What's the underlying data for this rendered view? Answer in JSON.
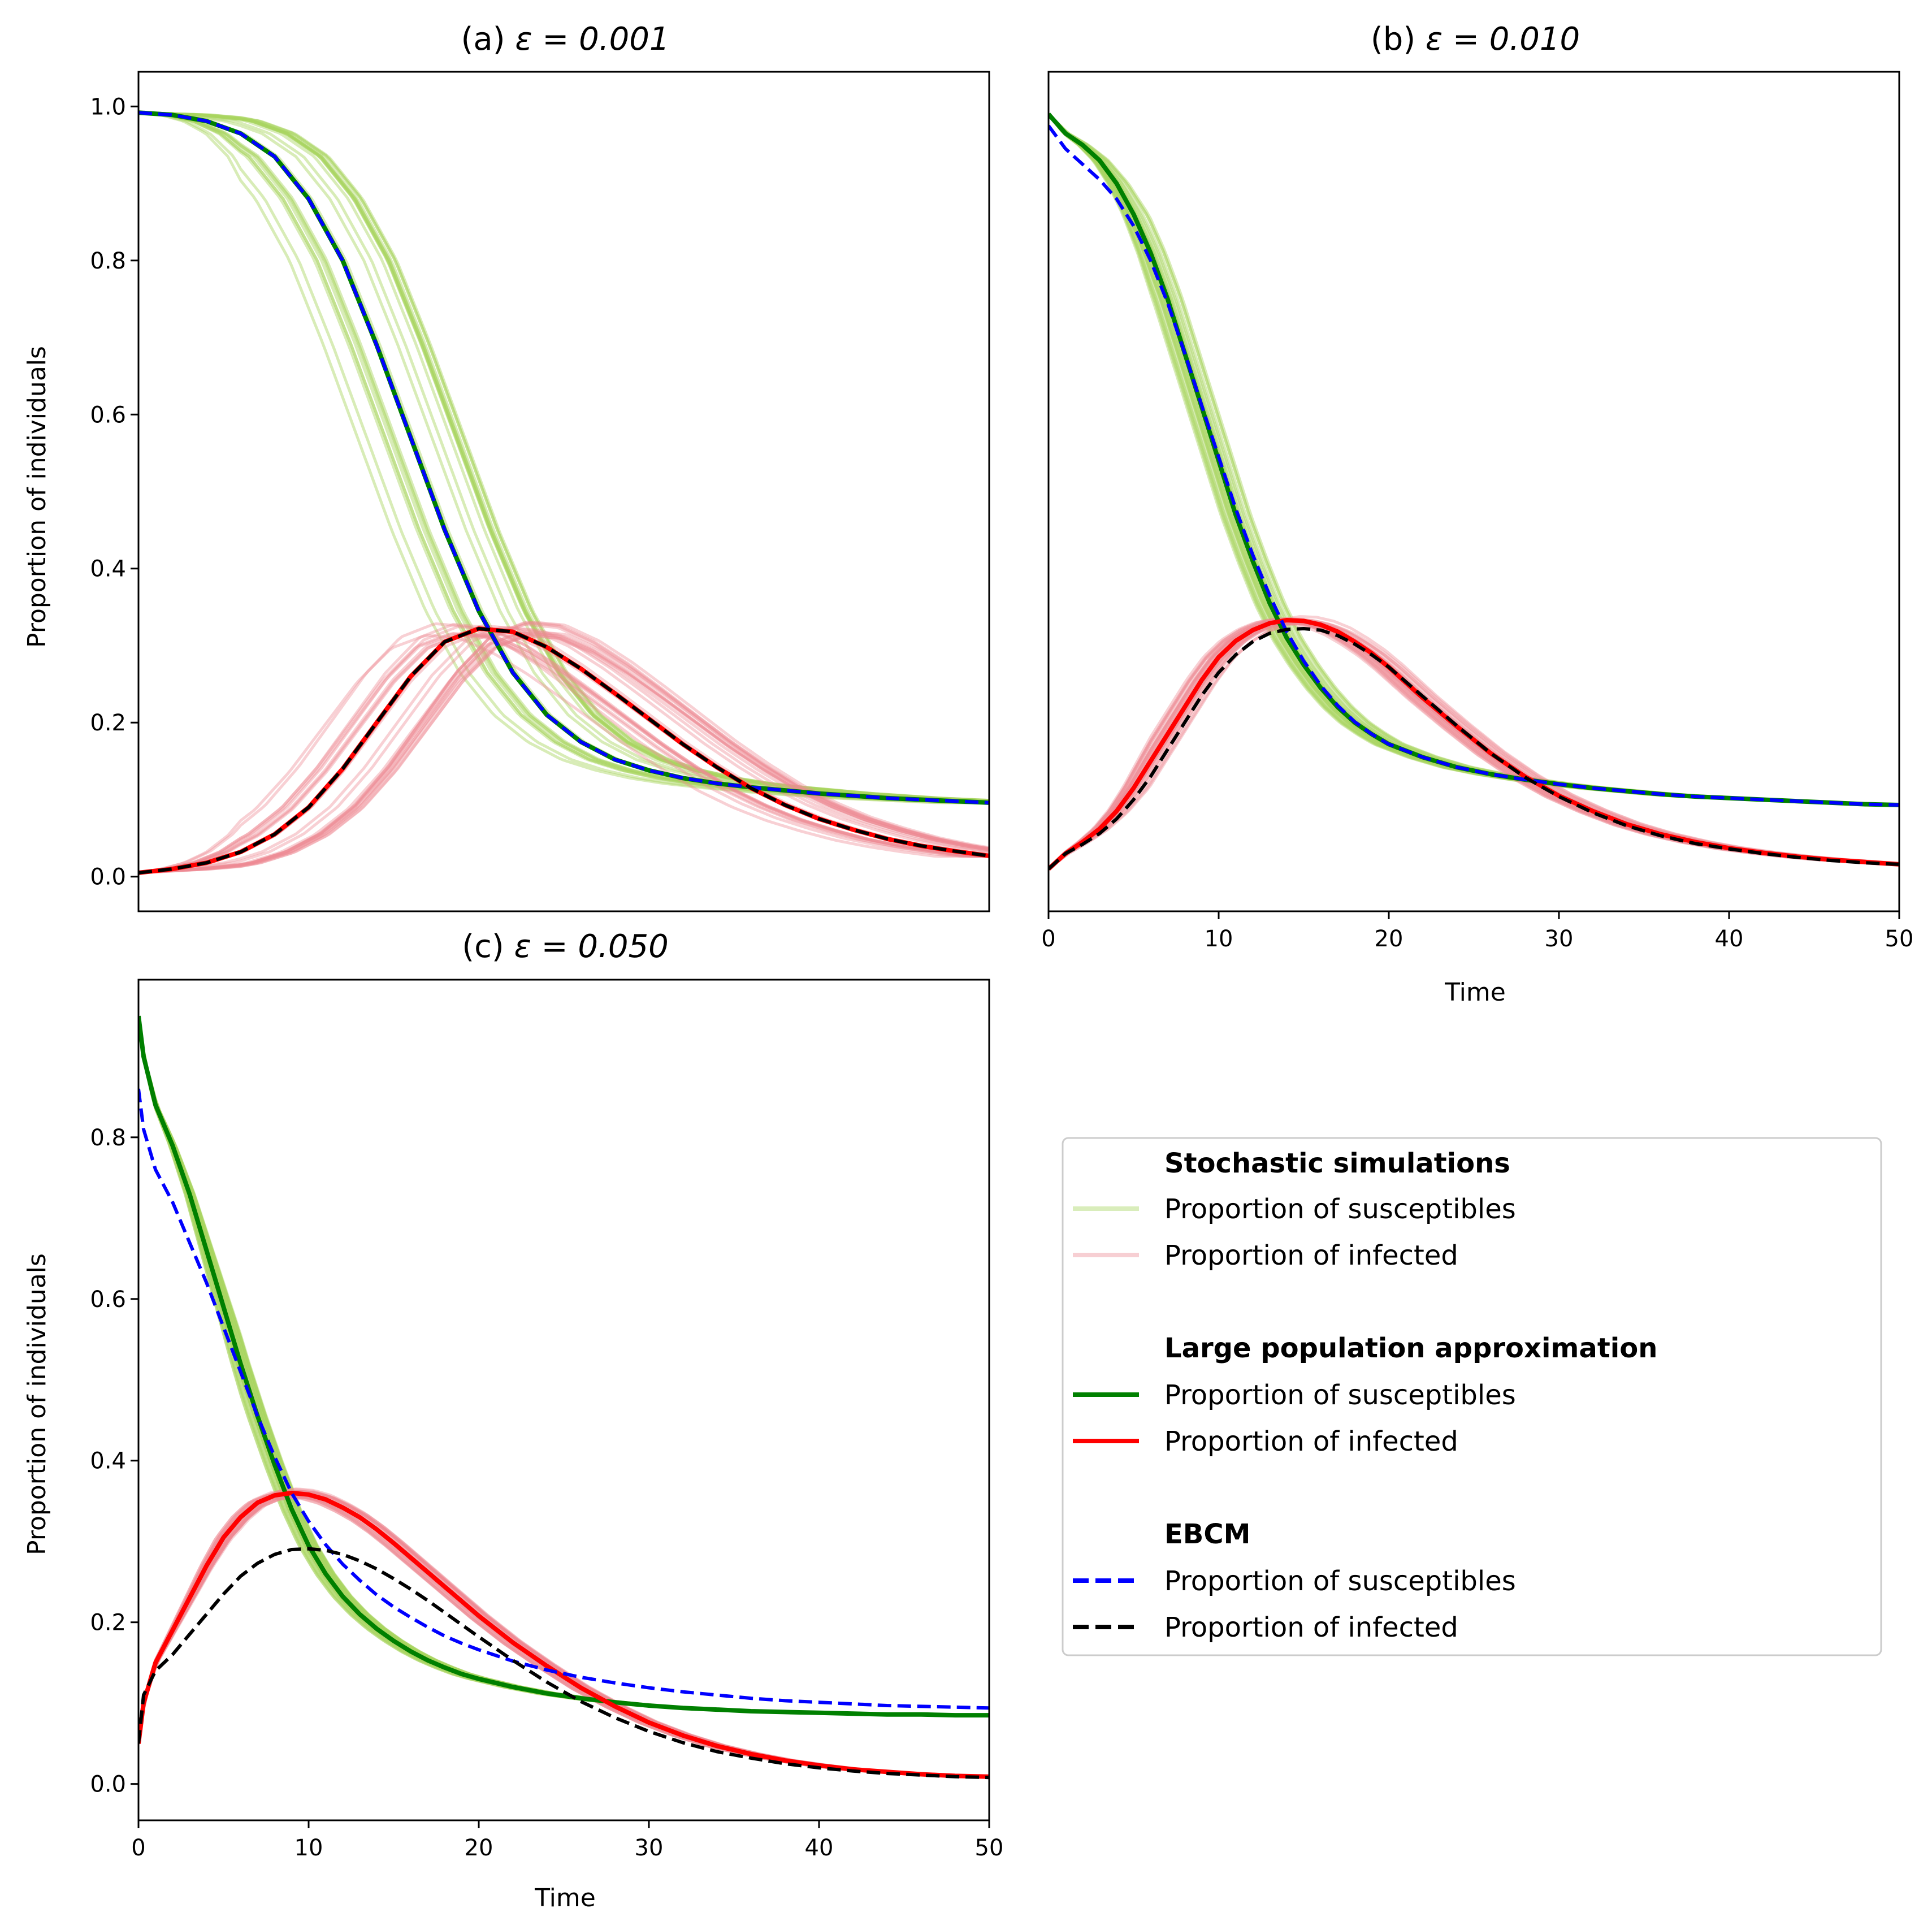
{
  "chart_data": [
    {
      "type": "line",
      "panel": "a",
      "title_prefix": "(a) ",
      "title_math": "ε = 0.001",
      "xlabel": "",
      "ylabel": "Proportion of individuals",
      "xlim": [
        0,
        50
      ],
      "ylim": [
        -0.045,
        1.045
      ],
      "show_xticks": false,
      "show_yticks": true,
      "yticks": [
        "0.0",
        "0.2",
        "0.4",
        "0.6",
        "0.8",
        "1.0"
      ],
      "ytick_values": [
        0,
        0.2,
        0.4,
        0.6,
        0.8,
        1.0
      ],
      "series": [
        {
          "role": "lpa_susceptibles",
          "color": "#008000",
          "style": "solid",
          "x": [
            0,
            2,
            4,
            6,
            8,
            10,
            12,
            14,
            16,
            18,
            20,
            22,
            24,
            26,
            28,
            30,
            32,
            34,
            36,
            38,
            40,
            42,
            44,
            46,
            48,
            50
          ],
          "y": [
            0.992,
            0.989,
            0.981,
            0.965,
            0.935,
            0.88,
            0.8,
            0.69,
            0.57,
            0.45,
            0.345,
            0.265,
            0.21,
            0.175,
            0.152,
            0.138,
            0.128,
            0.121,
            0.116,
            0.112,
            0.108,
            0.105,
            0.102,
            0.1,
            0.098,
            0.096
          ]
        },
        {
          "role": "lpa_infected",
          "color": "#ff0000",
          "style": "solid",
          "x": [
            0,
            2,
            4,
            6,
            8,
            10,
            12,
            14,
            16,
            18,
            20,
            22,
            24,
            26,
            28,
            30,
            32,
            34,
            36,
            38,
            40,
            42,
            44,
            46,
            48,
            50
          ],
          "y": [
            0.005,
            0.01,
            0.018,
            0.032,
            0.055,
            0.09,
            0.14,
            0.2,
            0.26,
            0.305,
            0.322,
            0.318,
            0.298,
            0.27,
            0.238,
            0.205,
            0.172,
            0.142,
            0.115,
            0.093,
            0.075,
            0.061,
            0.049,
            0.04,
            0.033,
            0.027
          ]
        },
        {
          "role": "ebcm_susceptibles",
          "color": "#0000ff",
          "style": "dashed",
          "x": [
            0,
            2,
            4,
            6,
            8,
            10,
            12,
            14,
            16,
            18,
            20,
            22,
            24,
            26,
            28,
            30,
            32,
            34,
            36,
            38,
            40,
            42,
            44,
            46,
            48,
            50
          ],
          "y": [
            0.992,
            0.989,
            0.981,
            0.965,
            0.935,
            0.88,
            0.8,
            0.69,
            0.57,
            0.45,
            0.345,
            0.265,
            0.21,
            0.175,
            0.152,
            0.138,
            0.128,
            0.121,
            0.116,
            0.112,
            0.108,
            0.105,
            0.102,
            0.1,
            0.098,
            0.096
          ]
        },
        {
          "role": "ebcm_infected",
          "color": "#000000",
          "style": "dashed",
          "x": [
            0,
            2,
            4,
            6,
            8,
            10,
            12,
            14,
            16,
            18,
            20,
            22,
            24,
            26,
            28,
            30,
            32,
            34,
            36,
            38,
            40,
            42,
            44,
            46,
            48,
            50
          ],
          "y": [
            0.005,
            0.01,
            0.018,
            0.032,
            0.055,
            0.09,
            0.14,
            0.2,
            0.26,
            0.305,
            0.322,
            0.318,
            0.298,
            0.27,
            0.238,
            0.205,
            0.172,
            0.142,
            0.115,
            0.093,
            0.075,
            0.061,
            0.049,
            0.04,
            0.033,
            0.027
          ]
        }
      ]
    },
    {
      "type": "line",
      "panel": "b",
      "title_prefix": "(b) ",
      "title_math": "ε = 0.010",
      "xlabel": "Time",
      "ylabel": "",
      "xlim": [
        0,
        50
      ],
      "ylim": [
        -0.045,
        1.045
      ],
      "show_xticks": true,
      "show_yticks": false,
      "xticks": [
        "0",
        "10",
        "20",
        "30",
        "40",
        "50"
      ],
      "xtick_values": [
        0,
        10,
        20,
        30,
        40,
        50
      ],
      "series": [
        {
          "role": "lpa_susceptibles",
          "color": "#008000",
          "style": "solid",
          "x": [
            0,
            1,
            2,
            3,
            4,
            5,
            6,
            7,
            8,
            9,
            10,
            11,
            12,
            13,
            14,
            15,
            16,
            17,
            18,
            19,
            20,
            22,
            24,
            26,
            28,
            30,
            32,
            34,
            36,
            38,
            40,
            42,
            44,
            46,
            48,
            50
          ],
          "y": [
            0.99,
            0.965,
            0.95,
            0.93,
            0.9,
            0.86,
            0.81,
            0.75,
            0.68,
            0.61,
            0.54,
            0.47,
            0.41,
            0.355,
            0.31,
            0.275,
            0.245,
            0.22,
            0.2,
            0.185,
            0.172,
            0.155,
            0.142,
            0.133,
            0.126,
            0.12,
            0.115,
            0.111,
            0.107,
            0.104,
            0.102,
            0.1,
            0.098,
            0.096,
            0.094,
            0.093
          ]
        },
        {
          "role": "lpa_infected",
          "color": "#ff0000",
          "style": "solid",
          "x": [
            0,
            1,
            2,
            3,
            4,
            5,
            6,
            7,
            8,
            9,
            10,
            11,
            12,
            13,
            14,
            15,
            16,
            17,
            18,
            19,
            20,
            22,
            24,
            26,
            28,
            30,
            32,
            34,
            36,
            38,
            40,
            42,
            44,
            46,
            48,
            50
          ],
          "y": [
            0.01,
            0.03,
            0.045,
            0.062,
            0.085,
            0.115,
            0.15,
            0.185,
            0.22,
            0.255,
            0.285,
            0.306,
            0.32,
            0.329,
            0.333,
            0.332,
            0.327,
            0.318,
            0.305,
            0.29,
            0.272,
            0.232,
            0.195,
            0.16,
            0.13,
            0.105,
            0.085,
            0.068,
            0.055,
            0.045,
            0.037,
            0.031,
            0.026,
            0.022,
            0.019,
            0.016
          ]
        },
        {
          "role": "ebcm_susceptibles",
          "color": "#0000ff",
          "style": "dashed",
          "x": [
            0,
            1,
            2,
            3,
            4,
            5,
            6,
            7,
            8,
            9,
            10,
            11,
            12,
            13,
            14,
            15,
            16,
            17,
            18,
            19,
            20,
            22,
            24,
            26,
            28,
            30,
            32,
            34,
            36,
            38,
            40,
            42,
            44,
            46,
            48,
            50
          ],
          "y": [
            0.975,
            0.945,
            0.925,
            0.905,
            0.88,
            0.845,
            0.8,
            0.745,
            0.68,
            0.612,
            0.545,
            0.478,
            0.418,
            0.365,
            0.318,
            0.28,
            0.248,
            0.222,
            0.201,
            0.185,
            0.172,
            0.155,
            0.142,
            0.133,
            0.126,
            0.12,
            0.115,
            0.111,
            0.107,
            0.104,
            0.102,
            0.1,
            0.098,
            0.096,
            0.094,
            0.093
          ]
        },
        {
          "role": "ebcm_infected",
          "color": "#000000",
          "style": "dashed",
          "x": [
            0,
            1,
            2,
            3,
            4,
            5,
            6,
            7,
            8,
            9,
            10,
            11,
            12,
            13,
            14,
            15,
            16,
            17,
            18,
            19,
            20,
            22,
            24,
            26,
            28,
            30,
            32,
            34,
            36,
            38,
            40,
            42,
            44,
            46,
            48,
            50
          ],
          "y": [
            0.01,
            0.03,
            0.042,
            0.056,
            0.075,
            0.1,
            0.13,
            0.165,
            0.2,
            0.235,
            0.265,
            0.288,
            0.305,
            0.316,
            0.321,
            0.322,
            0.32,
            0.313,
            0.302,
            0.288,
            0.272,
            0.234,
            0.196,
            0.16,
            0.129,
            0.104,
            0.083,
            0.066,
            0.053,
            0.043,
            0.036,
            0.03,
            0.025,
            0.021,
            0.018,
            0.016
          ]
        }
      ]
    },
    {
      "type": "line",
      "panel": "c",
      "title_prefix": "(c) ",
      "title_math": "ε = 0.050",
      "xlabel": "Time",
      "ylabel": "Proportion of individuals",
      "xlim": [
        0,
        50
      ],
      "ylim": [
        -0.045,
        0.995
      ],
      "show_xticks": true,
      "show_yticks": true,
      "xticks": [
        "0",
        "10",
        "20",
        "30",
        "40",
        "50"
      ],
      "xtick_values": [
        0,
        10,
        20,
        30,
        40,
        50
      ],
      "yticks": [
        "0.0",
        "0.2",
        "0.4",
        "0.6",
        "0.8"
      ],
      "ytick_values": [
        0,
        0.2,
        0.4,
        0.6,
        0.8
      ],
      "series": [
        {
          "role": "lpa_susceptibles",
          "color": "#008000",
          "style": "solid",
          "x": [
            0,
            0.3,
            1,
            2,
            3,
            4,
            5,
            6,
            7,
            8,
            9,
            10,
            11,
            12,
            13,
            14,
            15,
            16,
            17,
            18,
            19,
            20,
            22,
            24,
            26,
            28,
            30,
            32,
            34,
            36,
            38,
            40,
            42,
            44,
            46,
            48,
            50
          ],
          "y": [
            0.95,
            0.9,
            0.84,
            0.79,
            0.73,
            0.66,
            0.59,
            0.52,
            0.455,
            0.395,
            0.34,
            0.295,
            0.26,
            0.232,
            0.21,
            0.192,
            0.177,
            0.164,
            0.153,
            0.144,
            0.136,
            0.13,
            0.12,
            0.112,
            0.106,
            0.101,
            0.097,
            0.094,
            0.092,
            0.09,
            0.089,
            0.088,
            0.087,
            0.086,
            0.086,
            0.085,
            0.085
          ]
        },
        {
          "role": "lpa_infected",
          "color": "#ff0000",
          "style": "solid",
          "x": [
            0,
            0.3,
            1,
            2,
            3,
            4,
            5,
            6,
            7,
            8,
            9,
            10,
            11,
            12,
            13,
            14,
            15,
            16,
            17,
            18,
            19,
            20,
            22,
            24,
            26,
            28,
            30,
            32,
            34,
            36,
            38,
            40,
            42,
            44,
            46,
            48,
            50
          ],
          "y": [
            0.05,
            0.1,
            0.15,
            0.19,
            0.23,
            0.27,
            0.305,
            0.33,
            0.348,
            0.357,
            0.36,
            0.358,
            0.352,
            0.342,
            0.33,
            0.315,
            0.298,
            0.28,
            0.262,
            0.244,
            0.226,
            0.208,
            0.175,
            0.146,
            0.119,
            0.096,
            0.076,
            0.06,
            0.047,
            0.037,
            0.029,
            0.023,
            0.018,
            0.015,
            0.012,
            0.01,
            0.009
          ]
        },
        {
          "role": "ebcm_susceptibles",
          "color": "#0000ff",
          "style": "dashed",
          "x": [
            0,
            0.3,
            1,
            2,
            3,
            4,
            5,
            6,
            7,
            8,
            9,
            10,
            11,
            12,
            13,
            14,
            15,
            16,
            17,
            18,
            19,
            20,
            22,
            24,
            26,
            28,
            30,
            32,
            34,
            36,
            38,
            40,
            42,
            44,
            46,
            48,
            50
          ],
          "y": [
            0.86,
            0.81,
            0.76,
            0.72,
            0.67,
            0.62,
            0.565,
            0.51,
            0.455,
            0.405,
            0.36,
            0.325,
            0.296,
            0.272,
            0.252,
            0.234,
            0.219,
            0.206,
            0.194,
            0.183,
            0.174,
            0.166,
            0.152,
            0.141,
            0.132,
            0.125,
            0.119,
            0.114,
            0.11,
            0.106,
            0.103,
            0.101,
            0.099,
            0.097,
            0.096,
            0.095,
            0.094
          ]
        },
        {
          "role": "ebcm_infected",
          "color": "#000000",
          "style": "dashed",
          "x": [
            0,
            0.3,
            1,
            2,
            3,
            4,
            5,
            6,
            7,
            8,
            9,
            10,
            11,
            12,
            13,
            14,
            15,
            16,
            17,
            18,
            19,
            20,
            22,
            24,
            26,
            28,
            30,
            32,
            34,
            36,
            38,
            40,
            42,
            44,
            46,
            48,
            50
          ],
          "y": [
            0.05,
            0.11,
            0.14,
            0.16,
            0.185,
            0.21,
            0.235,
            0.257,
            0.273,
            0.284,
            0.29,
            0.291,
            0.289,
            0.284,
            0.276,
            0.266,
            0.254,
            0.241,
            0.227,
            0.212,
            0.197,
            0.182,
            0.153,
            0.126,
            0.102,
            0.082,
            0.065,
            0.051,
            0.04,
            0.032,
            0.025,
            0.02,
            0.016,
            0.013,
            0.011,
            0.009,
            0.008
          ]
        }
      ]
    }
  ],
  "legend": {
    "groups": [
      {
        "heading": "Stochastic simulations",
        "entries": [
          {
            "label": "Proportion of susceptibles",
            "color": "#b4dc78",
            "style": "solid",
            "alpha": 0.5
          },
          {
            "label": "Proportion of infected",
            "color": "#f0a0a8",
            "style": "solid",
            "alpha": 0.5
          }
        ]
      },
      {
        "heading": "Large population approximation",
        "entries": [
          {
            "label": "Proportion of susceptibles",
            "color": "#008000",
            "style": "solid",
            "alpha": 1
          },
          {
            "label": "Proportion of infected",
            "color": "#ff0000",
            "style": "solid",
            "alpha": 1
          }
        ]
      },
      {
        "heading": "EBCM",
        "entries": [
          {
            "label": "Proportion of susceptibles",
            "color": "#0000ff",
            "style": "dashed",
            "alpha": 1
          },
          {
            "label": "Proportion of infected",
            "color": "#000000",
            "style": "dashed",
            "alpha": 1
          }
        ]
      }
    ]
  }
}
